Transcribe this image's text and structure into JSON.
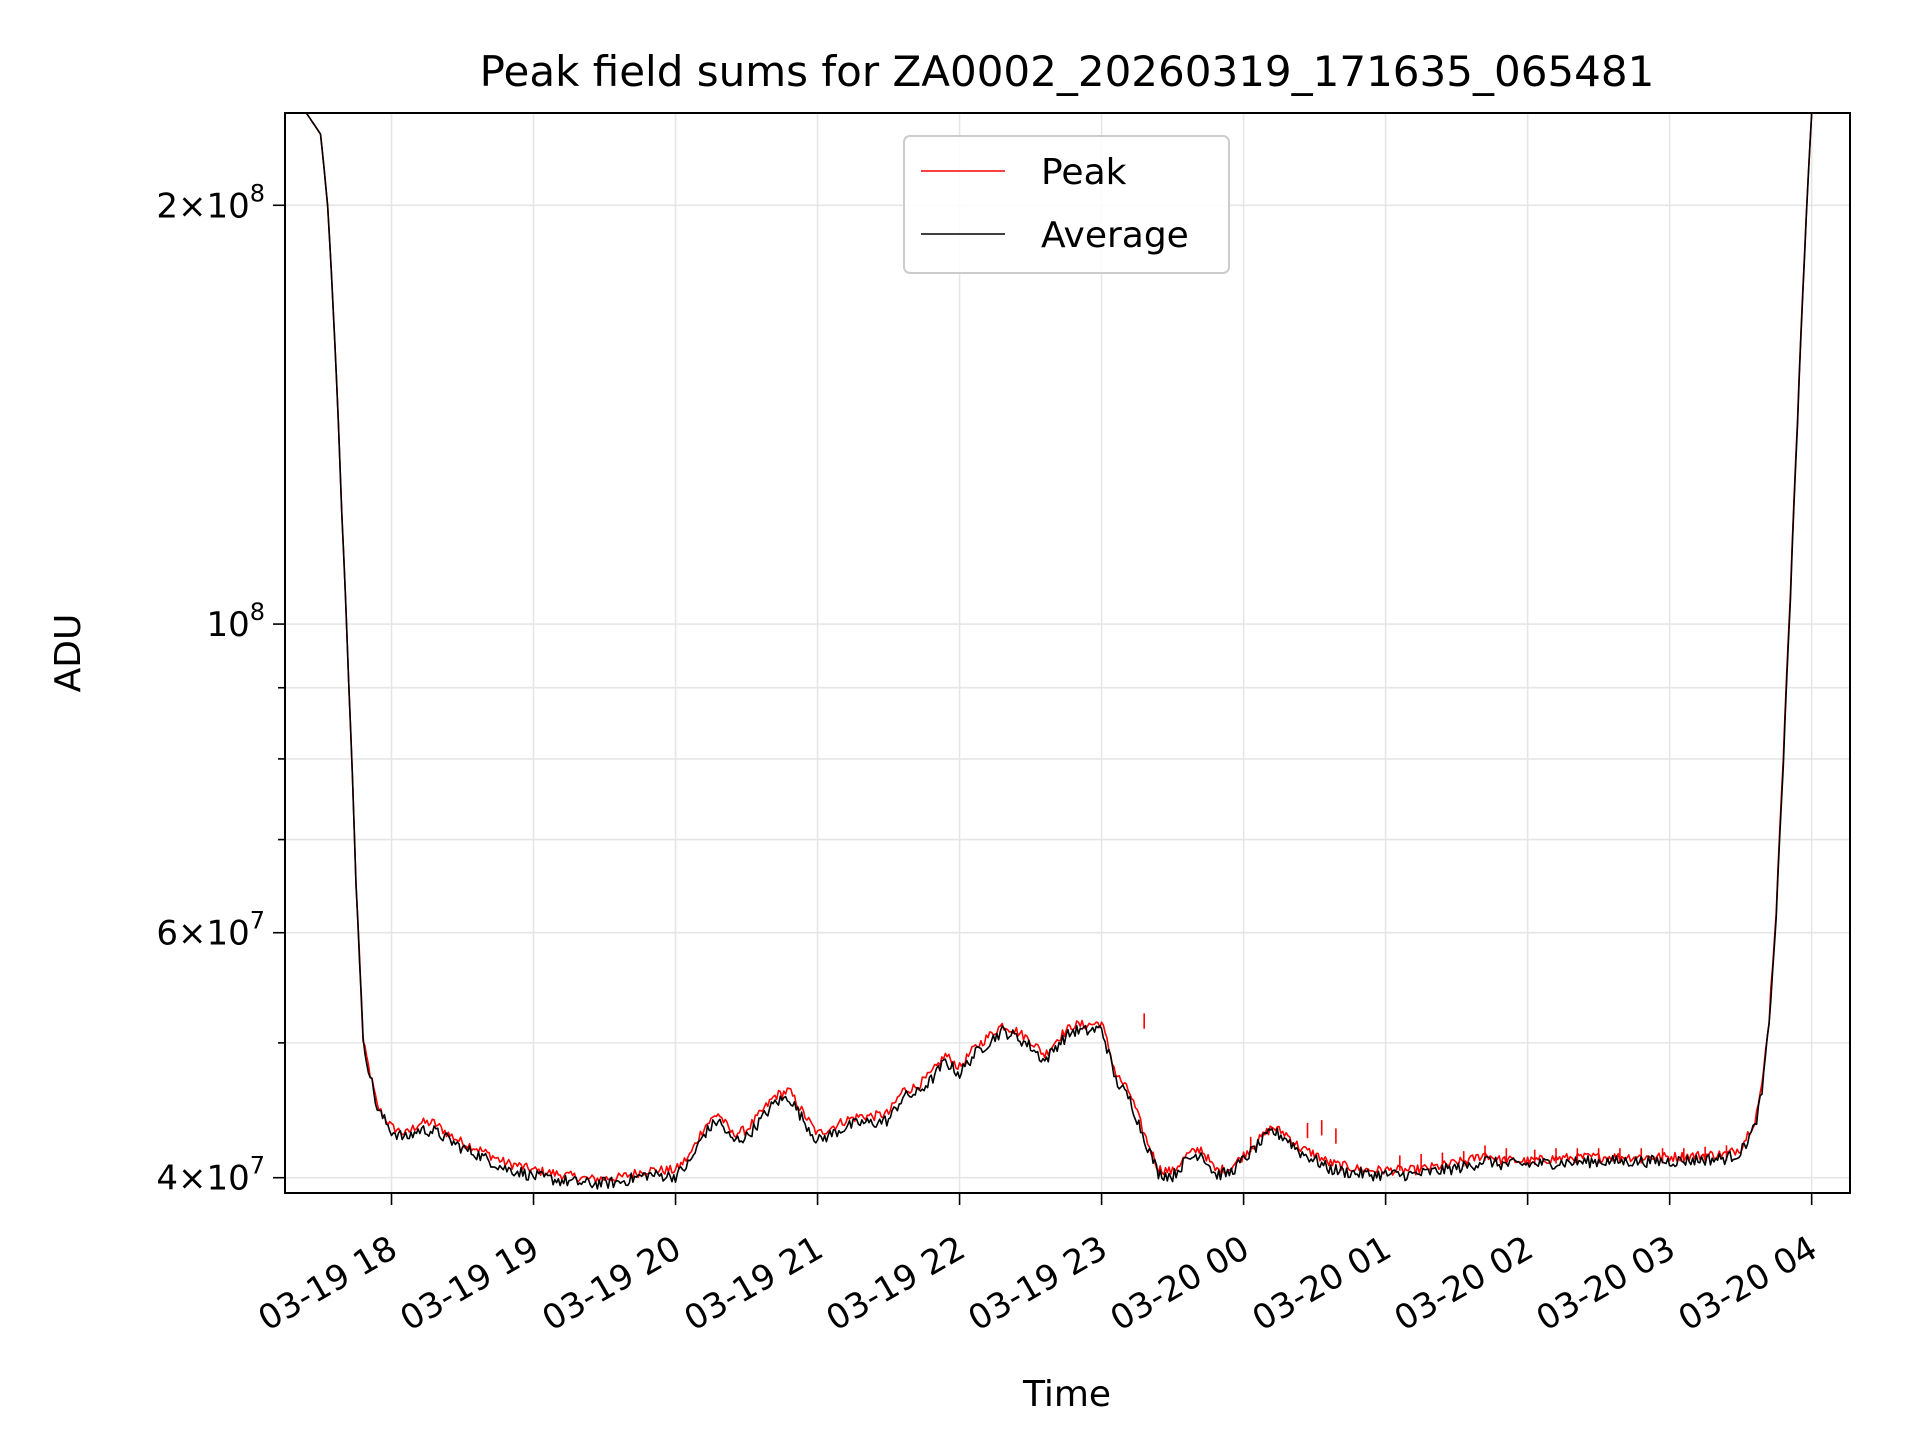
{
  "chart_data": {
    "type": "line",
    "title": "Peak field sums for ZA0002_20260319_171635_065481",
    "xlabel": "Time",
    "ylabel": "ADU",
    "yscale": "log",
    "ylim": [
      39000000,
      233000000
    ],
    "xlim_hours": [
      17.25,
      28.27
    ],
    "grid": true,
    "legend_position": "upper-center",
    "x_ticks": [
      {
        "hour": 18,
        "label": "03-19 18"
      },
      {
        "hour": 19,
        "label": "03-19 19"
      },
      {
        "hour": 20,
        "label": "03-19 20"
      },
      {
        "hour": 21,
        "label": "03-19 21"
      },
      {
        "hour": 22,
        "label": "03-19 22"
      },
      {
        "hour": 23,
        "label": "03-19 23"
      },
      {
        "hour": 24,
        "label": "03-20 00"
      },
      {
        "hour": 25,
        "label": "03-20 01"
      },
      {
        "hour": 26,
        "label": "03-20 02"
      },
      {
        "hour": 27,
        "label": "03-20 03"
      },
      {
        "hour": 28,
        "label": "03-20 04"
      }
    ],
    "y_ticks": [
      {
        "value": 40000000,
        "mantissa": "4",
        "exp": "7"
      },
      {
        "value": 60000000,
        "mantissa": "6",
        "exp": "7"
      },
      {
        "value": 100000000,
        "mantissa": "",
        "exp": "8"
      },
      {
        "value": 200000000,
        "mantissa": "2",
        "exp": "8"
      }
    ],
    "y_minor_ticks": [
      50000000,
      70000000,
      80000000,
      90000000
    ],
    "series": [
      {
        "name": "Peak",
        "color": "#ff0000",
        "hours": [
          17.25,
          17.4,
          17.5,
          17.55,
          17.6,
          17.65,
          17.7,
          17.75,
          17.8,
          17.9,
          18.0,
          18.1,
          18.2,
          18.3,
          18.4,
          18.5,
          18.6,
          18.7,
          18.8,
          18.9,
          19.0,
          19.2,
          19.4,
          19.6,
          19.8,
          20.0,
          20.1,
          20.2,
          20.3,
          20.4,
          20.5,
          20.6,
          20.7,
          20.8,
          20.9,
          21.0,
          21.1,
          21.2,
          21.3,
          21.4,
          21.5,
          21.6,
          21.7,
          21.8,
          21.9,
          22.0,
          22.1,
          22.2,
          22.3,
          22.4,
          22.5,
          22.6,
          22.7,
          22.8,
          22.9,
          23.0,
          23.1,
          23.2,
          23.3,
          23.4,
          23.5,
          23.6,
          23.7,
          23.8,
          23.9,
          24.0,
          24.1,
          24.2,
          24.3,
          24.4,
          24.5,
          24.6,
          24.7,
          24.8,
          24.9,
          25.0,
          25.2,
          25.4,
          25.6,
          25.7,
          25.8,
          26.0,
          26.2,
          26.5,
          26.8,
          27.0,
          27.2,
          27.4,
          27.5,
          27.6,
          27.65,
          27.7,
          27.75,
          27.8,
          27.85,
          27.9,
          27.95,
          28.0,
          28.05,
          28.15,
          28.27
        ],
        "values": [
          233000000,
          233000000,
          225000000,
          200000000,
          160000000,
          120000000,
          90000000,
          65000000,
          50000000,
          45000000,
          43500000,
          43000000,
          43800000,
          43800000,
          43000000,
          42400000,
          42000000,
          41500000,
          41000000,
          40800000,
          40500000,
          40200000,
          39900000,
          40000000,
          40500000,
          40500000,
          41500000,
          43500000,
          44500000,
          43000000,
          43300000,
          44500000,
          45800000,
          46200000,
          44500000,
          43000000,
          43500000,
          44000000,
          44300000,
          44300000,
          44500000,
          46200000,
          46500000,
          47500000,
          49000000,
          48000000,
          49500000,
          50500000,
          51500000,
          51000000,
          50200000,
          49000000,
          50500000,
          51500000,
          51500000,
          51700000,
          47500000,
          46000000,
          43000000,
          40600000,
          40400000,
          41500000,
          42000000,
          40500000,
          40600000,
          41500000,
          42500000,
          43500000,
          43000000,
          42000000,
          41600000,
          41000000,
          40800000,
          40600000,
          40500000,
          40500000,
          40500000,
          40800000,
          41200000,
          41600000,
          41200000,
          41100000,
          41300000,
          41400000,
          41400000,
          41400000,
          41500000,
          41600000,
          42000000,
          44000000,
          46500000,
          52000000,
          62000000,
          80000000,
          105000000,
          140000000,
          185000000,
          233000000,
          233000000,
          233000000,
          233000000
        ],
        "spikes": [
          {
            "hour": 25.1,
            "value": 41500000
          },
          {
            "hour": 25.25,
            "value": 41600000
          },
          {
            "hour": 25.4,
            "value": 41700000
          },
          {
            "hour": 25.55,
            "value": 41800000
          },
          {
            "hour": 25.7,
            "value": 42200000
          },
          {
            "hour": 25.85,
            "value": 42000000
          },
          {
            "hour": 26.05,
            "value": 41900000
          },
          {
            "hour": 26.2,
            "value": 42000000
          },
          {
            "hour": 26.35,
            "value": 42000000
          },
          {
            "hour": 26.5,
            "value": 42000000
          },
          {
            "hour": 26.65,
            "value": 42000000
          },
          {
            "hour": 26.8,
            "value": 42000000
          },
          {
            "hour": 26.95,
            "value": 42000000
          },
          {
            "hour": 27.1,
            "value": 42000000
          },
          {
            "hour": 27.25,
            "value": 42100000
          },
          {
            "hour": 27.4,
            "value": 42200000
          },
          {
            "hour": 24.45,
            "value": 43800000
          },
          {
            "hour": 24.55,
            "value": 44000000
          },
          {
            "hour": 24.65,
            "value": 43400000
          },
          {
            "hour": 24.05,
            "value": 42800000
          },
          {
            "hour": 23.3,
            "value": 52500000
          }
        ]
      },
      {
        "name": "Average",
        "color": "#000000",
        "hours": [
          17.25,
          17.4,
          17.5,
          17.55,
          17.6,
          17.65,
          17.7,
          17.75,
          17.8,
          17.9,
          18.0,
          18.1,
          18.2,
          18.3,
          18.4,
          18.5,
          18.6,
          18.7,
          18.8,
          18.9,
          19.0,
          19.2,
          19.4,
          19.6,
          19.8,
          20.0,
          20.1,
          20.2,
          20.3,
          20.4,
          20.5,
          20.6,
          20.7,
          20.8,
          20.9,
          21.0,
          21.1,
          21.2,
          21.3,
          21.4,
          21.5,
          21.6,
          21.7,
          21.8,
          21.9,
          22.0,
          22.1,
          22.2,
          22.3,
          22.4,
          22.5,
          22.6,
          22.7,
          22.8,
          22.9,
          23.0,
          23.1,
          23.2,
          23.3,
          23.4,
          23.5,
          23.6,
          23.7,
          23.8,
          23.9,
          24.0,
          24.1,
          24.2,
          24.3,
          24.4,
          24.5,
          24.6,
          24.7,
          24.8,
          24.9,
          25.0,
          25.2,
          25.4,
          25.6,
          25.7,
          25.8,
          26.0,
          26.2,
          26.5,
          26.8,
          27.0,
          27.2,
          27.4,
          27.5,
          27.6,
          27.65,
          27.7,
          27.75,
          27.8,
          27.85,
          27.9,
          27.95,
          28.0,
          28.05,
          28.15,
          28.27
        ],
        "values": [
          233000000,
          233000000,
          225000000,
          200000000,
          160000000,
          120000000,
          90000000,
          65000000,
          50000000,
          44800000,
          43200000,
          42700000,
          43300000,
          43200000,
          42600000,
          42000000,
          41600000,
          41100000,
          40600000,
          40400000,
          40100000,
          39800000,
          39600000,
          39700000,
          40200000,
          40100000,
          41000000,
          43000000,
          44000000,
          42500000,
          42800000,
          44000000,
          45300000,
          45700000,
          44000000,
          42500000,
          43000000,
          43500000,
          43800000,
          43800000,
          44000000,
          45700000,
          46000000,
          47000000,
          48500000,
          47500000,
          49000000,
          50000000,
          51000000,
          50500000,
          49700000,
          48500000,
          50000000,
          51000000,
          51000000,
          51200000,
          47000000,
          45500000,
          42700000,
          40300000,
          40100000,
          41200000,
          41700000,
          40200000,
          40300000,
          41200000,
          42200000,
          43200000,
          42700000,
          41700000,
          41200000,
          40600000,
          40400000,
          40300000,
          40200000,
          40200000,
          40200000,
          40500000,
          40800000,
          41200000,
          40900000,
          40900000,
          41000000,
          41100000,
          41100000,
          41100000,
          41200000,
          41300000,
          41700000,
          43500000,
          46000000,
          51500000,
          61500000,
          79000000,
          104000000,
          139000000,
          184000000,
          233000000,
          233000000,
          233000000,
          233000000
        ]
      }
    ]
  }
}
